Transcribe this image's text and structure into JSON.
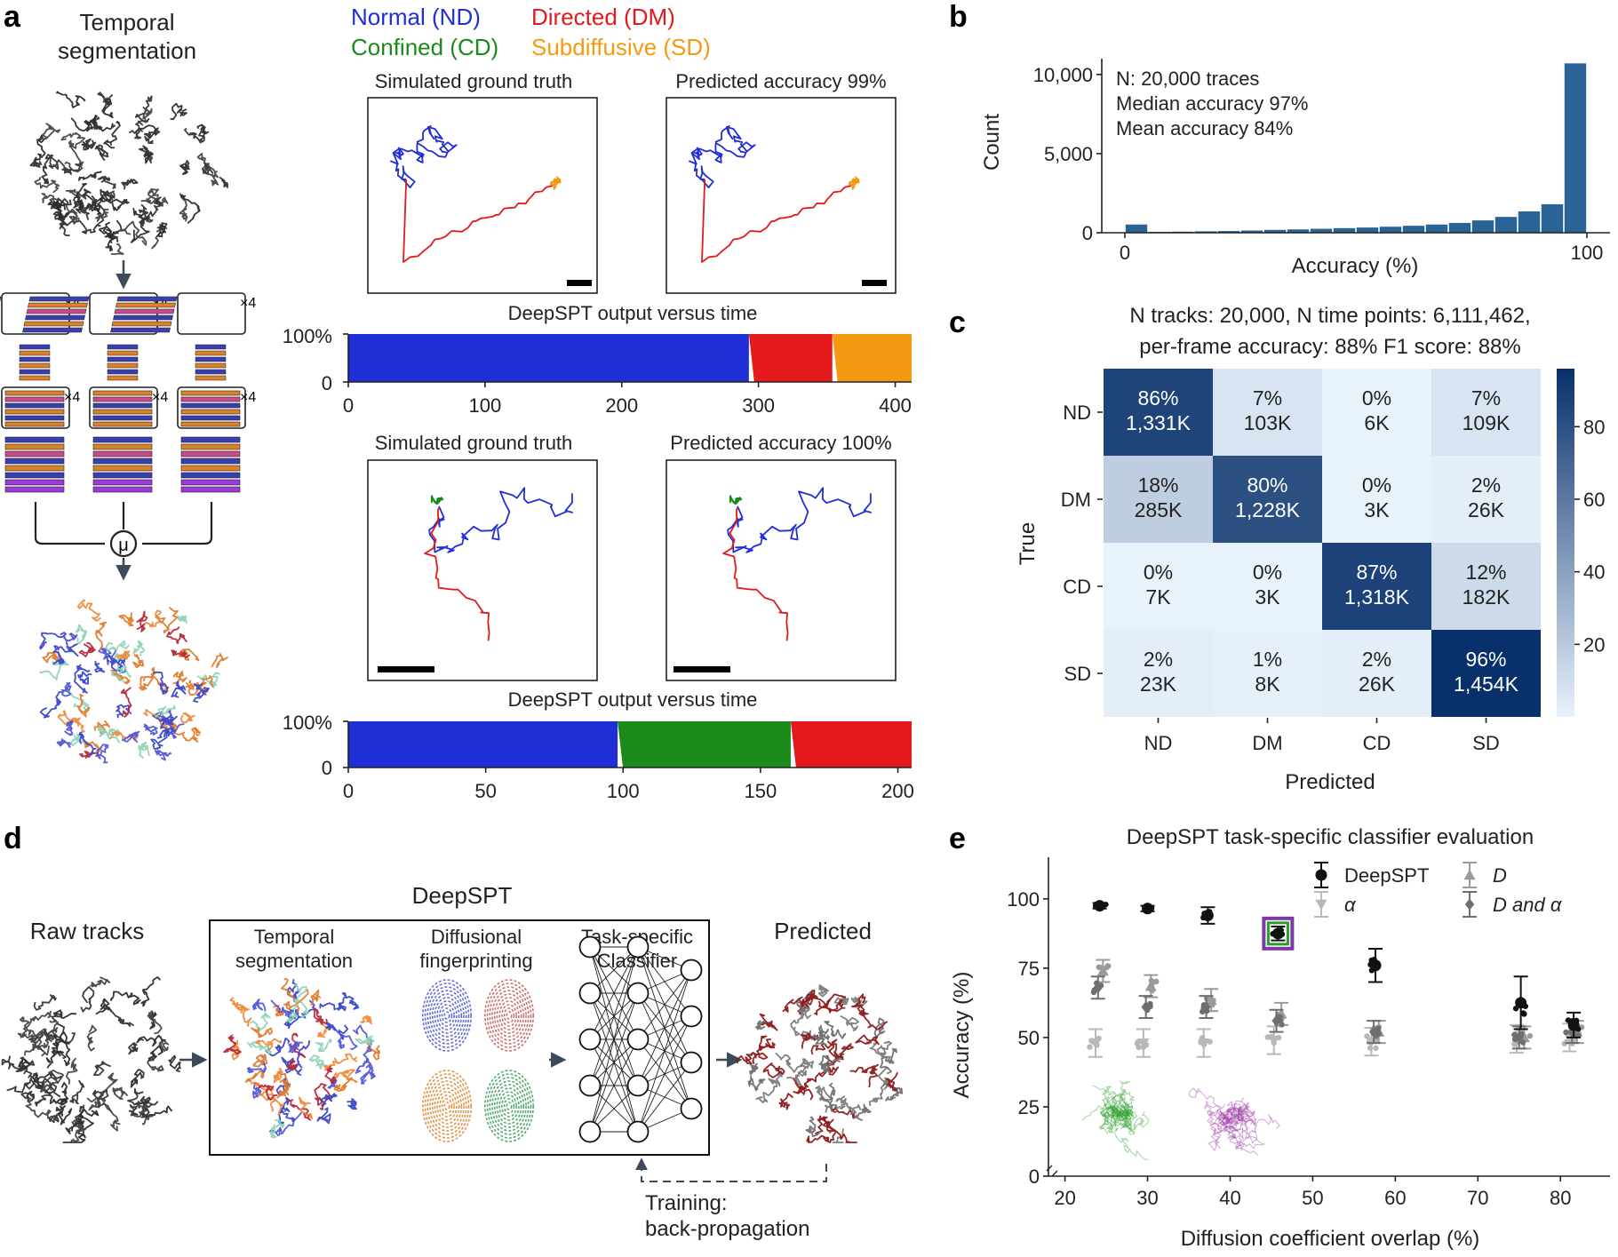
{
  "panel_labels": {
    "a": "a",
    "b": "b",
    "c": "c",
    "d": "d",
    "e": "e"
  },
  "panel_a": {
    "title_line1": "Temporal",
    "title_line2": "segmentation",
    "stack_multiplier": "×4",
    "mu_symbol": "μ",
    "legend": [
      {
        "label": "Normal (ND)",
        "color": "#1f2fd6"
      },
      {
        "label": "Directed (DM)",
        "color": "#e3191c"
      },
      {
        "label": "Confined (CD)",
        "color": "#1a8a1a"
      },
      {
        "label": "Subdiffusive (SD)",
        "color": "#f59a10"
      }
    ],
    "example1": {
      "gt_title": "Simulated ground truth",
      "pred_title": "Predicted accuracy 99%",
      "output_title": "DeepSPT output versus time",
      "ytick_top": "100%",
      "ytick_bottom": "0",
      "xticks": [
        "0",
        "100",
        "200",
        "300",
        "400"
      ]
    },
    "example2": {
      "gt_title": "Simulated ground truth",
      "pred_title": "Predicted accuracy 100%",
      "output_title": "DeepSPT output versus time",
      "ytick_top": "100%",
      "ytick_bottom": "0",
      "xticks": [
        "0",
        "50",
        "100",
        "150",
        "200"
      ]
    }
  },
  "chart_data": [
    {
      "panel": "a-output-1",
      "type": "area",
      "x_range": [
        0,
        412
      ],
      "segments": [
        {
          "class": "ND",
          "start": 0,
          "end": 293
        },
        {
          "class": "DM",
          "start": 293,
          "end": 354
        },
        {
          "class": "SD",
          "start": 354,
          "end": 412
        }
      ],
      "xticks": [
        0,
        100,
        200,
        300,
        400
      ]
    },
    {
      "panel": "a-output-2",
      "type": "area",
      "x_range": [
        0,
        205
      ],
      "segments": [
        {
          "class": "ND",
          "start": 0,
          "end": 98
        },
        {
          "class": "CD",
          "start": 98,
          "end": 161
        },
        {
          "class": "DM",
          "start": 161,
          "end": 205
        }
      ],
      "xticks": [
        0,
        50,
        100,
        150,
        200
      ]
    },
    {
      "panel": "b",
      "type": "bar",
      "xlabel": "Accuracy (%)",
      "ylabel": "Count",
      "xlim": [
        -5,
        105
      ],
      "ylim": [
        0,
        11000
      ],
      "yticks": [
        "0",
        "5,000",
        "10,000"
      ],
      "yticks_values": [
        0,
        5000,
        10000
      ],
      "xticks": [
        "0",
        "100"
      ],
      "xticks_values": [
        0,
        100
      ],
      "annotations": [
        "N: 20,000 traces",
        "Median accuracy 97%",
        "Mean accuracy 84%"
      ],
      "bin_starts": [
        0,
        5,
        10,
        15,
        20,
        25,
        30,
        35,
        40,
        45,
        50,
        55,
        60,
        65,
        70,
        75,
        80,
        85,
        90,
        95
      ],
      "bin_width": 5,
      "values": [
        520,
        60,
        70,
        90,
        110,
        140,
        180,
        210,
        250,
        290,
        330,
        380,
        440,
        520,
        620,
        780,
        1000,
        1350,
        1800,
        10700
      ],
      "color": "#2a6496"
    },
    {
      "panel": "c",
      "type": "heatmap",
      "title_line1": "N tracks: 20,000, N time points: 6,111,462,",
      "title_line2": "per-frame accuracy: 88% F1 score: 88%",
      "ylabel": "True",
      "xlabel": "Predicted",
      "rows": [
        "ND",
        "DM",
        "CD",
        "SD"
      ],
      "cols": [
        "ND",
        "DM",
        "CD",
        "SD"
      ],
      "percent": [
        [
          86,
          7,
          0,
          7
        ],
        [
          18,
          80,
          0,
          2
        ],
        [
          0,
          0,
          87,
          12
        ],
        [
          2,
          1,
          2,
          96
        ]
      ],
      "percent_labels": [
        [
          "86%",
          "7%",
          "0%",
          "7%"
        ],
        [
          "18%",
          "80%",
          "0%",
          "2%"
        ],
        [
          "0%",
          "0%",
          "87%",
          "12%"
        ],
        [
          "2%",
          "1%",
          "2%",
          "96%"
        ]
      ],
      "count_labels": [
        [
          "1,331K",
          "103K",
          "6K",
          "109K"
        ],
        [
          "285K",
          "1,228K",
          "3K",
          "26K"
        ],
        [
          "7K",
          "3K",
          "1,318K",
          "182K"
        ],
        [
          "23K",
          "8K",
          "26K",
          "1,454K"
        ]
      ],
      "colorbar_ticks": [
        "20",
        "40",
        "60",
        "80"
      ],
      "colorbar_values": [
        20,
        40,
        60,
        80
      ],
      "colorbar_range": [
        0,
        96
      ]
    },
    {
      "panel": "e",
      "type": "scatter",
      "title": "DeepSPT task-specific classifier evaluation",
      "xlabel": "Diffusion coefficient overlap (%)",
      "ylabel": "Accuracy (%)",
      "xlim": [
        18,
        86
      ],
      "ylim": [
        0,
        115
      ],
      "xticks": [
        "20",
        "30",
        "40",
        "50",
        "60",
        "70",
        "80"
      ],
      "xticks_values": [
        20,
        30,
        40,
        50,
        60,
        70,
        80
      ],
      "yticks": [
        "0",
        "25",
        "50",
        "75",
        "100"
      ],
      "yticks_values": [
        0,
        25,
        50,
        75,
        100
      ],
      "series": [
        {
          "name": "DeepSPT",
          "color": "#111111",
          "marker": "circle",
          "x": [
            24.2,
            30.0,
            37.3,
            45.8,
            57.6,
            75.2,
            81.6
          ],
          "y": [
            97.5,
            96.5,
            94.0,
            87.5,
            76.0,
            62.5,
            54.5
          ],
          "err": [
            1.0,
            1.0,
            3.0,
            2.5,
            6.0,
            9.5,
            4.5
          ]
        },
        {
          "name": "α",
          "color": "#b8b8b8",
          "marker": "triangle-down",
          "x": [
            23.7,
            29.5,
            36.8,
            45.3,
            57.1,
            74.7,
            81.1
          ],
          "y": [
            48.0,
            48.0,
            48.0,
            49.0,
            48.5,
            49.5,
            50.0
          ],
          "err": [
            5.0,
            5.0,
            5.0,
            5.0,
            5.0,
            5.0,
            5.0
          ]
        },
        {
          "name": "D",
          "color": "#9a9a9a",
          "marker": "triangle-up",
          "x": [
            24.6,
            30.4,
            37.7,
            46.2,
            58.0,
            75.6,
            82.0
          ],
          "y": [
            74.0,
            68.5,
            63.5,
            58.5,
            52.0,
            50.0,
            52.0
          ],
          "err": [
            4.0,
            4.0,
            4.0,
            4.0,
            4.0,
            4.0,
            4.0
          ]
        },
        {
          "name": "D and α",
          "color": "#6e6e6e",
          "marker": "diamond",
          "x": [
            24.0,
            29.8,
            37.1,
            45.6,
            57.4,
            75.0,
            81.4
          ],
          "y": [
            68.0,
            61.0,
            61.0,
            56.0,
            52.0,
            50.0,
            52.0
          ],
          "err": [
            4.0,
            4.0,
            4.0,
            4.0,
            4.0,
            4.0,
            4.0
          ]
        }
      ],
      "legend_labels": [
        "DeepSPT",
        "α",
        "D",
        "D and α"
      ],
      "highlight_color": "#7b3aa5",
      "highlight_inner_color": "#2a9d2a"
    }
  ],
  "panel_d": {
    "raw_label": "Raw tracks",
    "deepspt_label": "DeepSPT",
    "temporal_label_line1": "Temporal",
    "temporal_label_line2": "segmentation",
    "fingerprint_label_line1": "Diffusional",
    "fingerprint_label_line2": "fingerprinting",
    "classifier_label_line1": "Task-specific",
    "classifier_label_line2": "Classifier",
    "predicted_label": "Predicted",
    "training_line1": "Training:",
    "training_line2": "back-propagation"
  }
}
